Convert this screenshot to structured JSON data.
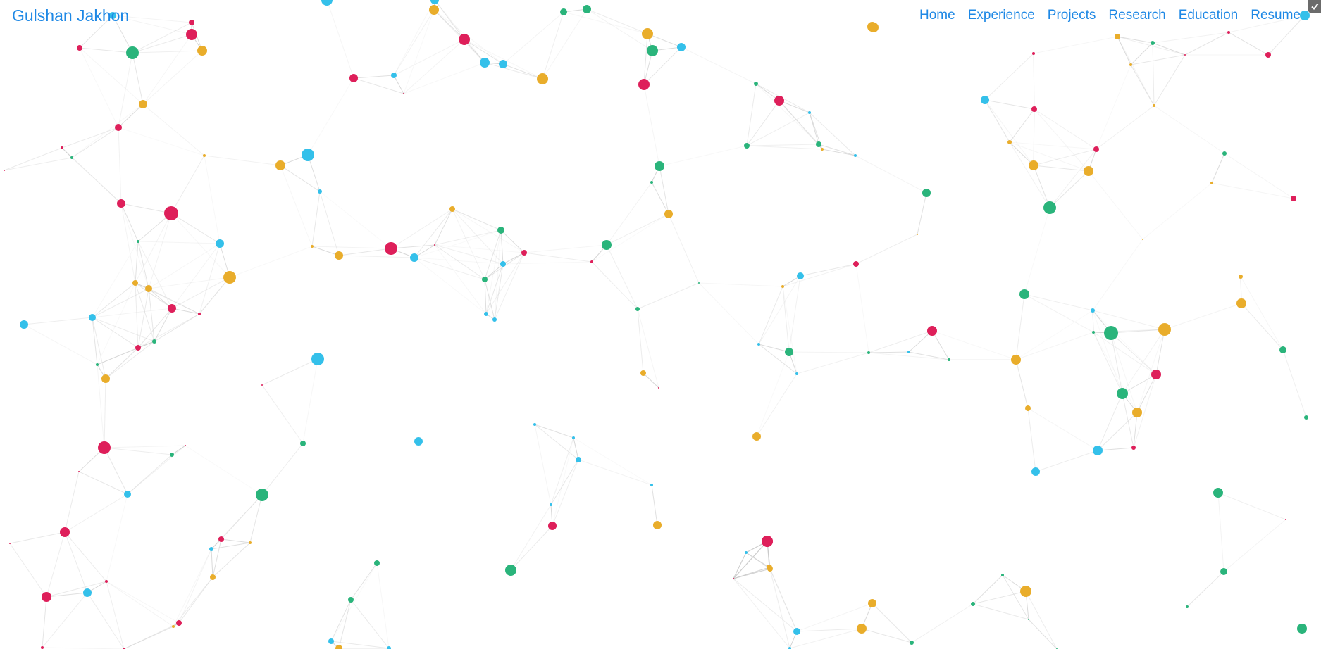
{
  "brand": {
    "name": "Gulshan Jakhon"
  },
  "nav": {
    "items": [
      {
        "label": "Home"
      },
      {
        "label": "Experience"
      },
      {
        "label": "Projects"
      },
      {
        "label": "Research"
      },
      {
        "label": "Education"
      },
      {
        "label": "Resume"
      }
    ]
  },
  "background": {
    "node_colors": [
      "#de1f5a",
      "#e9ad2b",
      "#2ab47b",
      "#34c0ea"
    ],
    "edge_color": "#c9c9c9"
  },
  "corner_toggle": {
    "icon": "check-icon"
  }
}
